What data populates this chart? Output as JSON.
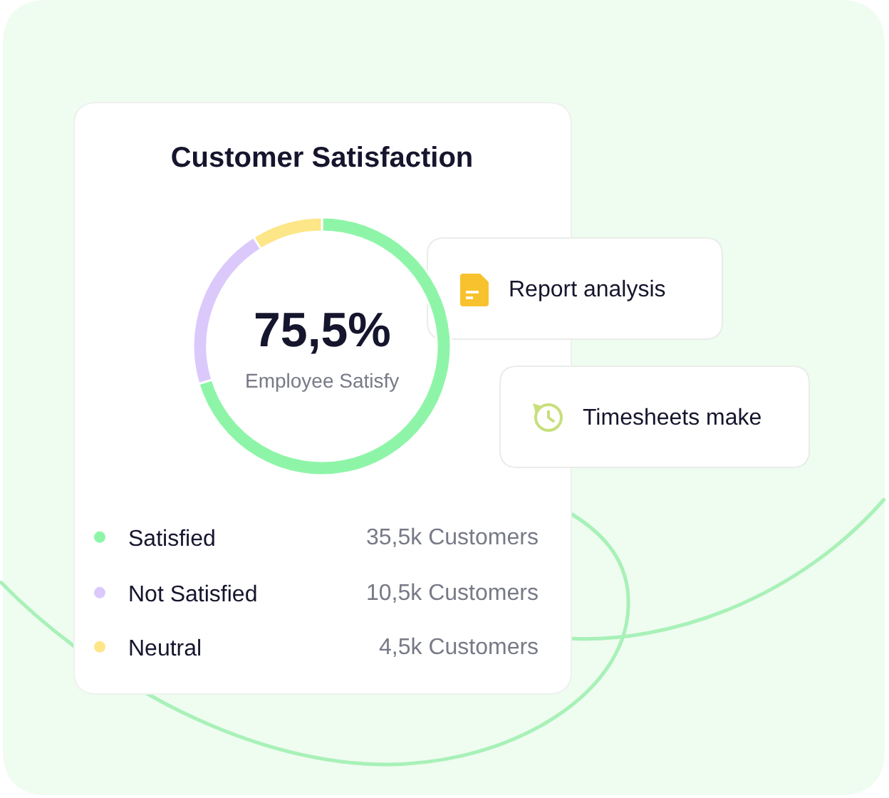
{
  "chart_data": {
    "type": "donut",
    "title": "Customer Satisfaction",
    "categories": [
      "Satisfied",
      "Not Satisfied",
      "Neutral"
    ],
    "values": [
      35.5,
      10.5,
      4.5
    ],
    "colors": [
      "#8ef5a8",
      "#dcc9fb",
      "#fde688"
    ],
    "value_labels": [
      "35,5k Customers",
      "10,5k Customers",
      "4,5k Customers"
    ],
    "legend": "bottom",
    "annotations": [
      "75,5%",
      "Employee Satisfy",
      "Report analysis",
      "Timesheets make"
    ]
  }
}
